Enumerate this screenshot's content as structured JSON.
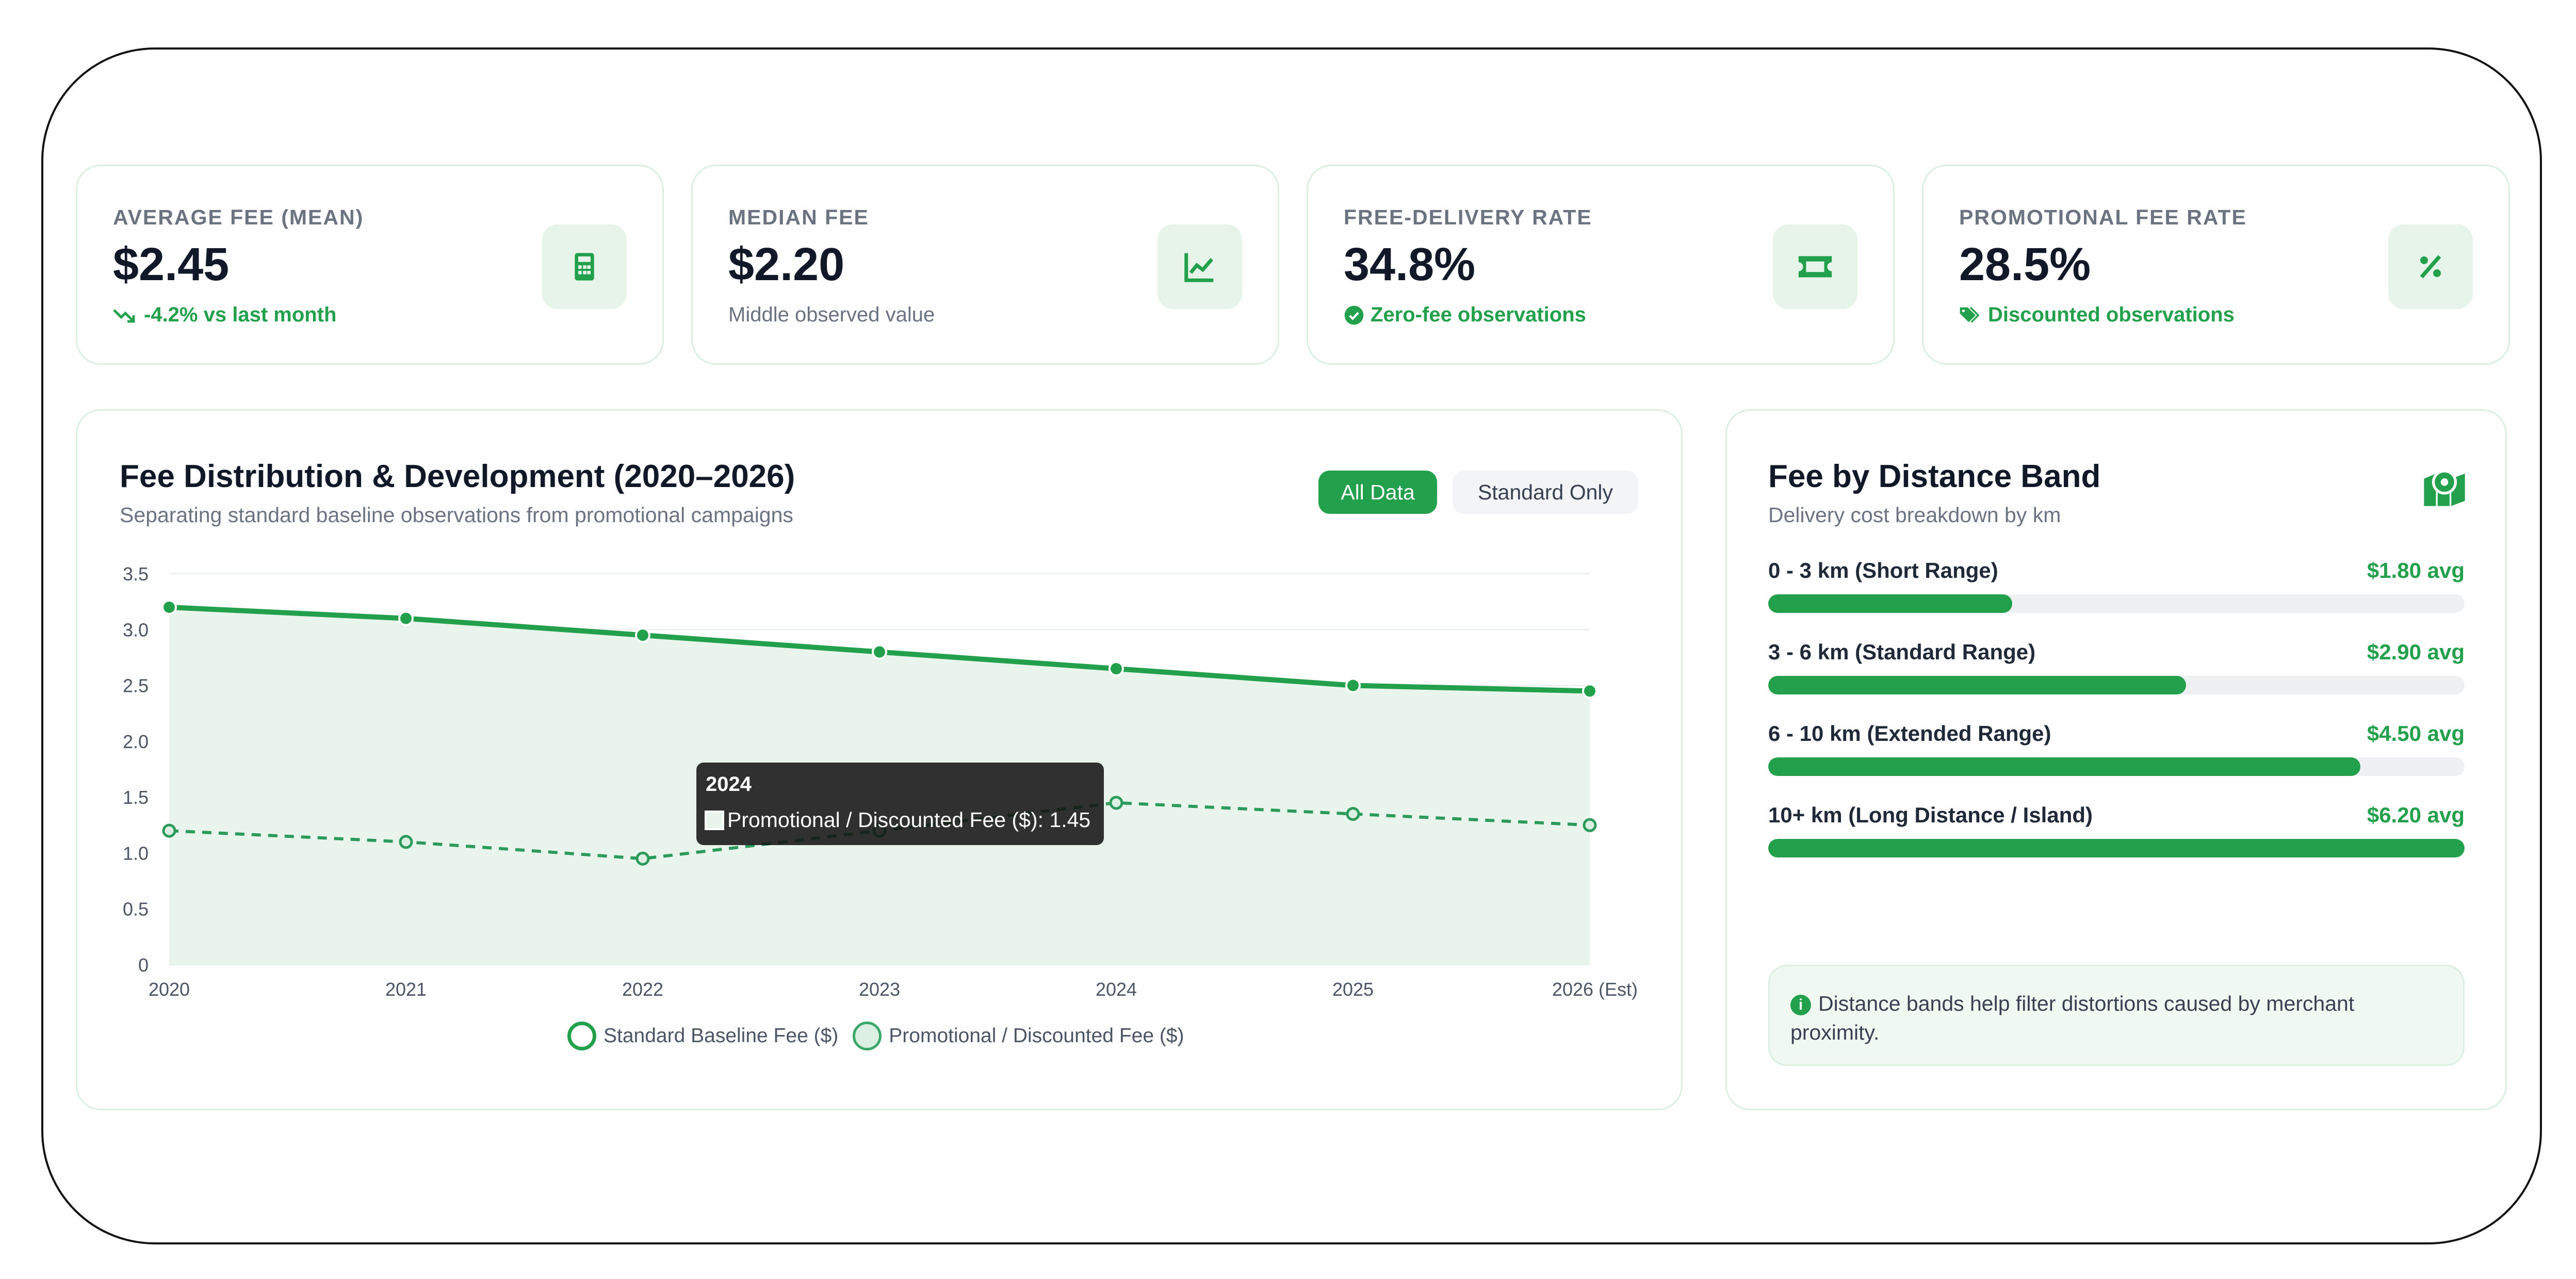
{
  "kpis": [
    {
      "label": "AVERAGE FEE (MEAN)",
      "value": "$2.45",
      "sub": "-4.2% vs last month",
      "icon": "calculator-icon"
    },
    {
      "label": "MEDIAN FEE",
      "value": "$2.20",
      "sub": "Middle observed value",
      "icon": "line-chart-icon"
    },
    {
      "label": "FREE-DELIVERY RATE",
      "value": "34.8%",
      "sub": "Zero-fee observations",
      "icon": "ticket-icon"
    },
    {
      "label": "PROMOTIONAL FEE RATE",
      "value": "28.5%",
      "sub": "Discounted observations",
      "icon": "percent-icon"
    }
  ],
  "chart_panel": {
    "title": "Fee Distribution & Development (2020–2026)",
    "subtitle": "Separating standard baseline observations from promotional campaigns",
    "buttons": {
      "all": "All Data",
      "standard": "Standard Only"
    }
  },
  "tooltip": {
    "title": "2024",
    "text": "Promotional / Discounted Fee ($): 1.45"
  },
  "chart_data": {
    "type": "line",
    "categories": [
      "2020",
      "2021",
      "2022",
      "2023",
      "2024",
      "2025",
      "2026 (Est)"
    ],
    "series": [
      {
        "name": "Standard Baseline Fee ($)",
        "values": [
          3.2,
          3.1,
          2.95,
          2.8,
          2.65,
          2.5,
          2.45
        ],
        "fill": true,
        "style": "solid"
      },
      {
        "name": "Promotional / Discounted Fee ($)",
        "values": [
          1.2,
          1.1,
          0.95,
          1.2,
          1.45,
          1.35,
          1.25
        ],
        "fill": false,
        "style": "dashed"
      }
    ],
    "ylim": [
      0,
      3.5
    ],
    "yticks": [
      "0",
      "0.5",
      "1.0",
      "1.5",
      "2.0",
      "2.5",
      "3.0",
      "3.5"
    ],
    "grid": true,
    "legend": "bottom",
    "colors": {
      "line": "#22a04b",
      "fill": "#e8f4ec"
    }
  },
  "distance_panel": {
    "title": "Fee by Distance Band",
    "subtitle": "Delivery cost breakdown by km",
    "bands": [
      {
        "label": "0 - 3 km (Short Range)",
        "value": "$1.80 avg",
        "fraction": 0.35
      },
      {
        "label": "3 - 6 km (Standard Range)",
        "value": "$2.90 avg",
        "fraction": 0.6
      },
      {
        "label": "6 - 10 km (Extended Range)",
        "value": "$4.50 avg",
        "fraction": 0.85
      },
      {
        "label": "10+ km (Long Distance / Island)",
        "value": "$6.20 avg",
        "fraction": 1.0
      }
    ],
    "note": "Distance bands help filter distortions caused by merchant proximity."
  }
}
